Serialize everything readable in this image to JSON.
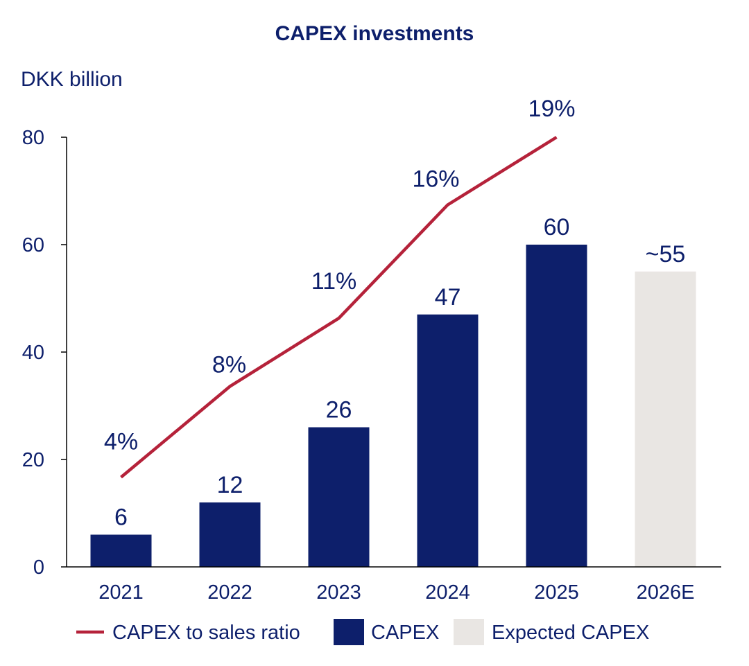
{
  "chart_data": {
    "type": "bar",
    "title": "CAPEX investments",
    "ylabel": "DKK billion",
    "xlabel": "",
    "categories": [
      "2021",
      "2022",
      "2023",
      "2024",
      "2025",
      "2026E"
    ],
    "ylim": [
      0,
      80
    ],
    "yticks": [
      0,
      20,
      40,
      60,
      80
    ],
    "grid": false,
    "series": [
      {
        "name": "CAPEX",
        "type": "bar",
        "values": [
          6,
          12,
          26,
          47,
          60,
          null
        ],
        "labels": [
          "6",
          "12",
          "26",
          "47",
          "60",
          ""
        ]
      },
      {
        "name": "Expected CAPEX",
        "type": "bar",
        "values": [
          null,
          null,
          null,
          null,
          null,
          55
        ],
        "labels": [
          "",
          "",
          "",
          "",
          "",
          "~55"
        ]
      },
      {
        "name": "CAPEX to sales ratio",
        "type": "line",
        "values_on_left_axis": [
          16.7,
          33.6,
          46.3,
          67.4,
          80.0,
          null
        ],
        "ratio_percent": [
          4,
          8,
          11,
          16,
          19,
          null
        ],
        "labels": [
          "4%",
          "8%",
          "11%",
          "16%",
          "19%",
          ""
        ]
      }
    ],
    "legend": {
      "position": "bottom",
      "items": [
        {
          "name": "CAPEX to sales ratio",
          "kind": "line"
        },
        {
          "name": "CAPEX",
          "kind": "bar"
        },
        {
          "name": "Expected CAPEX",
          "kind": "bar"
        }
      ]
    },
    "colors": {
      "capex": "#0d1f6b",
      "expected": "#e9e6e3",
      "ratio_line": "#b5223a",
      "text": "#0d1f6b",
      "axis": "#000000"
    }
  }
}
